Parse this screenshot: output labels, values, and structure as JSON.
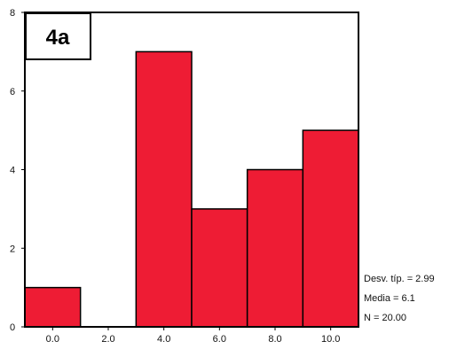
{
  "chart_data": {
    "type": "bar",
    "panel_label": "4a",
    "categories": [
      "0.0",
      "2.0",
      "4.0",
      "6.0",
      "8.0",
      "10.0"
    ],
    "values": [
      1,
      0,
      7,
      3,
      4,
      5
    ],
    "ylim": [
      0,
      8
    ],
    "y_ticks": [
      "0",
      "2",
      "4",
      "6",
      "8"
    ],
    "bar_color": "#ee1c34",
    "grid": false,
    "stats": {
      "std_dev": "Desv. típ. = 2.99",
      "mean": "Media = 6.1",
      "n": "N = 20.00"
    }
  }
}
